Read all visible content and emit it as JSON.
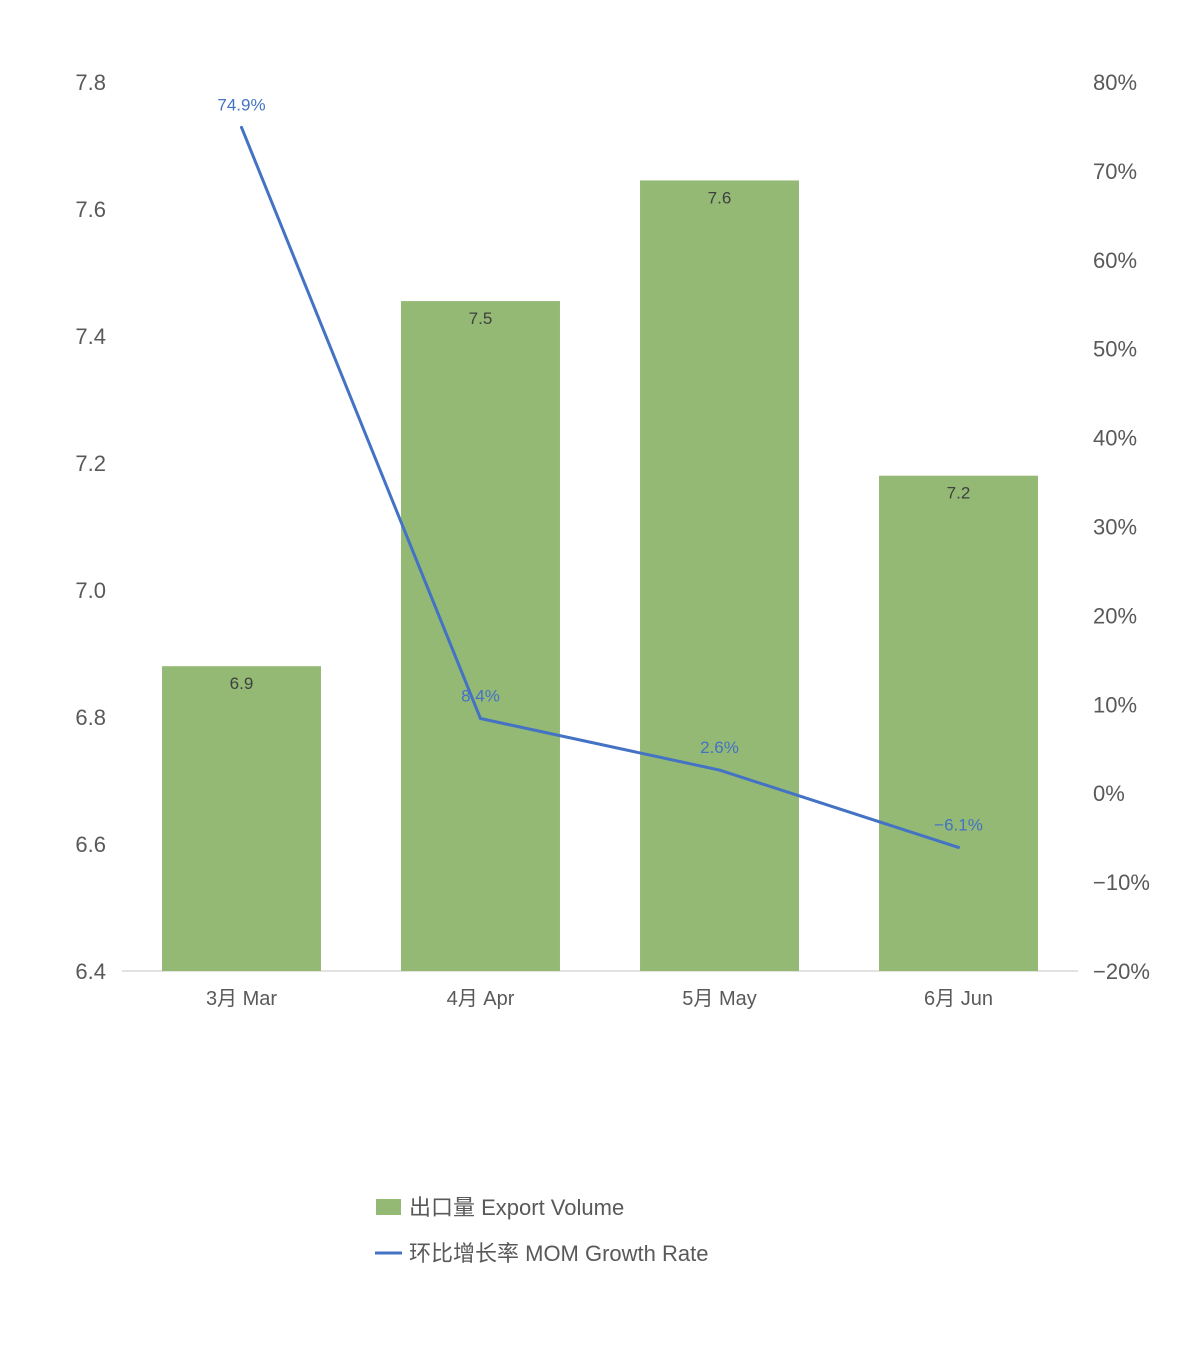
{
  "chart_data": {
    "type": "bar",
    "categories": [
      "3月 Mar",
      "4月 Apr",
      "5月 May",
      "6月 Jun"
    ],
    "series": [
      {
        "name": "出口量 Export Volume",
        "type": "bar",
        "axis": "left",
        "values": [
          6.88,
          7.455,
          7.645,
          7.18
        ],
        "data_labels": [
          "6.9",
          "7.5",
          "7.6",
          "7.2"
        ],
        "color": "#93b975"
      },
      {
        "name": "环比增长率 MOM Growth Rate",
        "type": "line",
        "axis": "right",
        "values": [
          74.9,
          8.4,
          2.6,
          -6.1
        ],
        "data_labels": [
          "74.9%",
          "8.4%",
          "2.6%",
          "−6.1%"
        ],
        "color": "#4472c4"
      }
    ],
    "y_left": {
      "min": 6.4,
      "max": 7.8,
      "ticks": [
        "6.4",
        "6.6",
        "6.8",
        "7.0",
        "7.2",
        "7.4",
        "7.6",
        "7.8"
      ]
    },
    "y_right": {
      "min": -20,
      "max": 80,
      "ticks": [
        "−20%",
        "−10%",
        "0%",
        "10%",
        "20%",
        "30%",
        "40%",
        "50%",
        "60%",
        "70%",
        "80%"
      ]
    },
    "grid": false,
    "legend_position": "bottom"
  }
}
